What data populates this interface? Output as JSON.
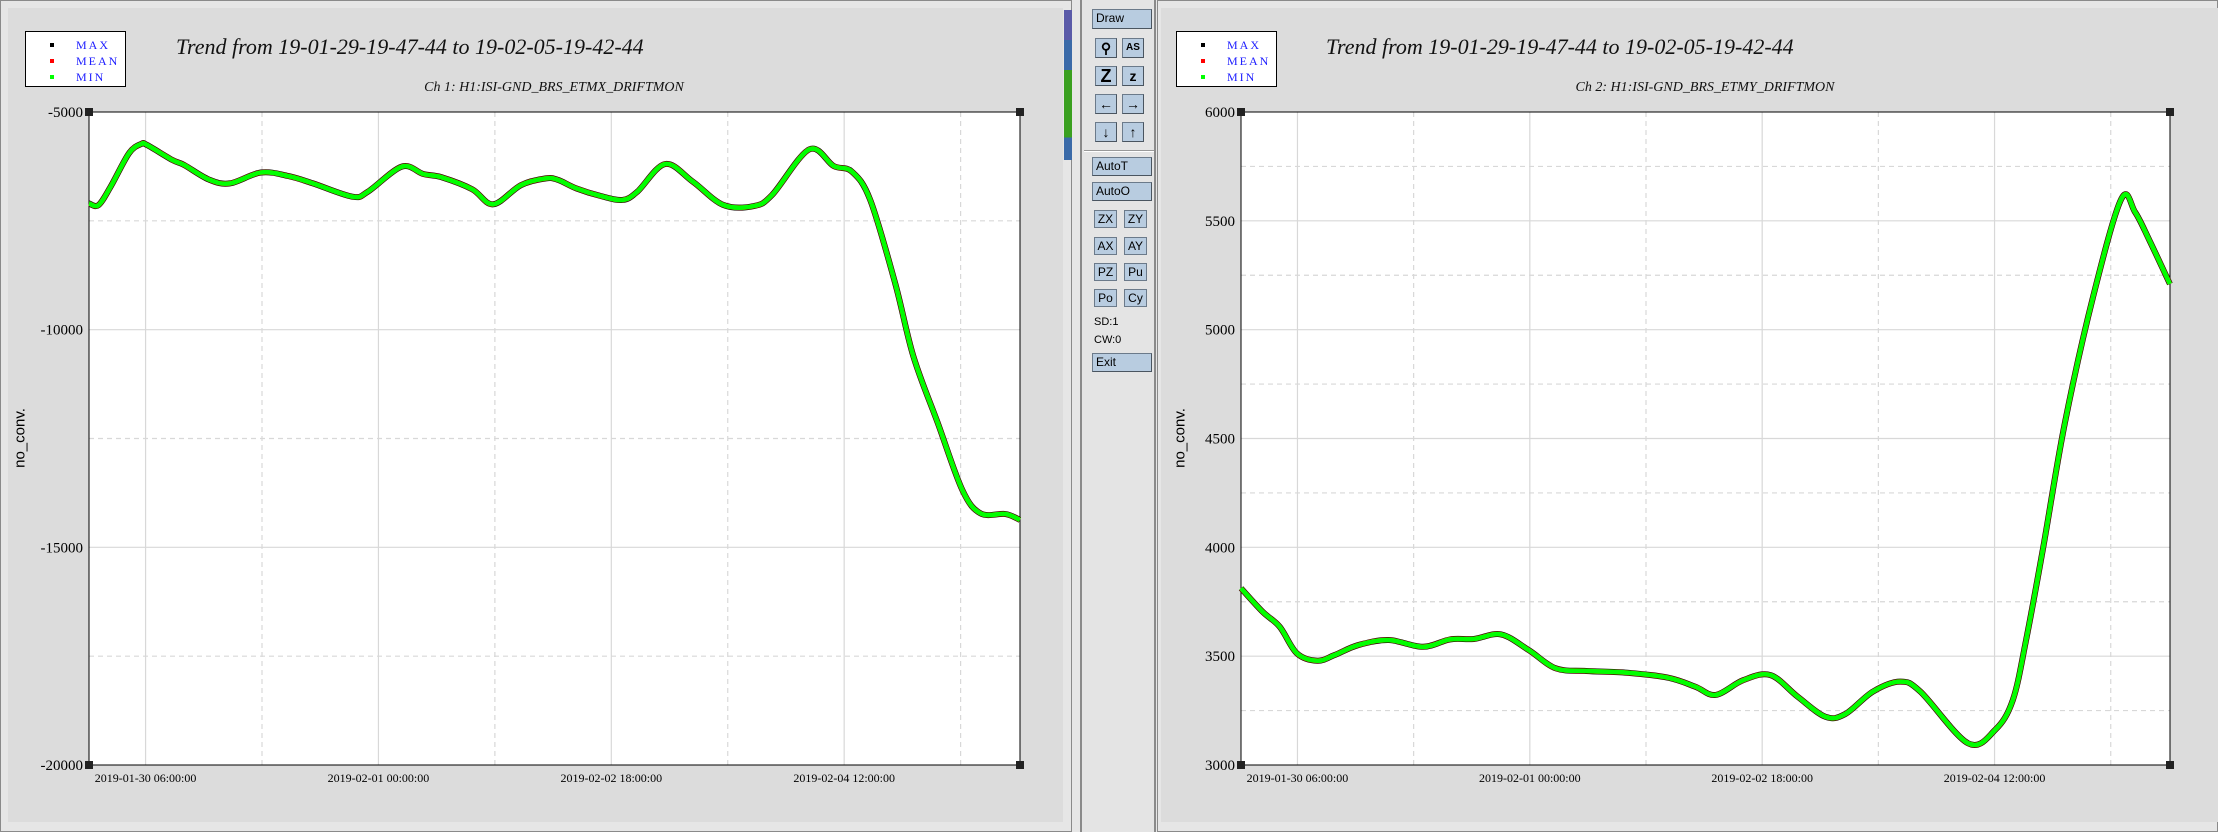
{
  "legend": {
    "items": [
      {
        "label": "MAX",
        "color": "#000000"
      },
      {
        "label": "MEAN",
        "color": "#ff0000"
      },
      {
        "label": "MIN",
        "color": "#00ff00"
      }
    ]
  },
  "controls": {
    "draw": "Draw",
    "autot": "AutoT",
    "autoo": "AutoO",
    "exit": "Exit",
    "icons": [
      {
        "name": "zoom-magnifier-icon",
        "glyph": "⚲"
      },
      {
        "name": "autoscale-icon",
        "glyph": "AS"
      },
      {
        "name": "zoom-out-icon",
        "glyph": "Z"
      },
      {
        "name": "zoom-in-icon",
        "glyph": "z"
      },
      {
        "name": "arrow-left-icon",
        "glyph": "←"
      },
      {
        "name": "arrow-right-icon",
        "glyph": "→"
      },
      {
        "name": "arrow-down-icon",
        "glyph": "↓"
      },
      {
        "name": "arrow-up-icon",
        "glyph": "↑"
      }
    ],
    "small": [
      "ZX",
      "ZY",
      "AX",
      "AY",
      "PZ",
      "Pu",
      "Po",
      "Cy"
    ],
    "sd": "SD:1",
    "cw": "CW:0"
  },
  "chart_data": [
    {
      "type": "line",
      "title": "Trend from 19-01-29-19-47-44 to 19-02-05-19-42-44",
      "subtitle": "Ch 1: H1:ISI-GND_BRS_ETMX_DRIFTMON",
      "ylabel": "no_conv.",
      "xlim": [
        "2019-01-29 19:47:44",
        "2019-02-05 19:42:44"
      ],
      "ylim": [
        -20000,
        -5000
      ],
      "yticks": [
        -5000,
        -10000,
        -15000,
        -20000
      ],
      "ytick_labels": [
        "-5000",
        "-10000",
        "-15000",
        "-20000"
      ],
      "xticks": [
        "2019-01-30 06:00:00",
        "2019-02-01 00:00:00",
        "2019-02-02 18:00:00",
        "2019-02-04 12:00:00"
      ],
      "grid": true,
      "line_color": "#00ff00",
      "x": [
        "2019-01-29 19:48",
        "2019-01-29 21:30",
        "2019-01-29 23:42",
        "2019-01-30 03:00",
        "2019-01-30 05:12",
        "2019-01-30 06:18",
        "2019-01-30 10:48",
        "2019-01-30 13:00",
        "2019-01-30 17:24",
        "2019-01-30 21:12",
        "2019-01-31 02:48",
        "2019-01-31 07:42",
        "2019-01-31 12:12",
        "2019-01-31 19:18",
        "2019-01-31 22:06",
        "2019-02-01 04:12",
        "2019-02-01 08:06",
        "2019-02-01 11:24",
        "2019-02-01 16:54",
        "2019-02-01 20:42",
        "2019-02-02 01:42",
        "2019-02-02 06:12",
        "2019-02-02 08:24",
        "2019-02-02 11:42",
        "2019-02-02 16:06",
        "2019-02-02 20:00",
        "2019-02-02 22:42",
        "2019-02-03 03:42",
        "2019-02-03 08:42",
        "2019-02-03 14:12",
        "2019-02-03 19:42",
        "2019-02-03 23:00",
        "2019-02-04 05:42",
        "2019-02-04 10:06",
        "2019-02-04 13:24",
        "2019-02-04 16:42",
        "2019-02-04 21:12",
        "2019-02-05 00:30",
        "2019-02-05 04:54",
        "2019-02-05 09:18",
        "2019-02-05 12:36",
        "2019-02-05 17:06",
        "2019-02-05 19:42"
      ],
      "y": [
        -7100,
        -7140,
        -6715,
        -5950,
        -5735,
        -5760,
        -6100,
        -6220,
        -6550,
        -6640,
        -6390,
        -6470,
        -6640,
        -6945,
        -6830,
        -6255,
        -6425,
        -6500,
        -6775,
        -7120,
        -6680,
        -6525,
        -6560,
        -6755,
        -6930,
        -7020,
        -6830,
        -6195,
        -6600,
        -7135,
        -7160,
        -6905,
        -5860,
        -6240,
        -6370,
        -7020,
        -8935,
        -10620,
        -12150,
        -13680,
        -14220,
        -14235,
        -14370
      ]
    },
    {
      "type": "line",
      "title": "Trend from 19-01-29-19-47-44 to 19-02-05-19-42-44",
      "subtitle": "Ch 2: H1:ISI-GND_BRS_ETMY_DRIFTMON",
      "ylabel": "no_conv.",
      "xlim": [
        "2019-01-29 19:47:44",
        "2019-02-05 19:42:44"
      ],
      "ylim": [
        3000,
        6000
      ],
      "yticks": [
        6000,
        5500,
        5000,
        4500,
        4000,
        3500,
        3000
      ],
      "ytick_labels": [
        "6000",
        "5500",
        "5000",
        "4500",
        "4000",
        "3500",
        "3000"
      ],
      "xticks": [
        "2019-01-30 06:00:00",
        "2019-02-01 00:00:00",
        "2019-02-02 18:00:00",
        "2019-02-04 12:00:00"
      ],
      "grid": true,
      "line_color": "#00ff00",
      "x": [
        "2019-01-29 19:48",
        "2019-01-29 23:42",
        "2019-01-30 02:48",
        "2019-01-30 05:54",
        "2019-01-30 09:36",
        "2019-01-30 12:42",
        "2019-01-30 17:00",
        "2019-01-30 22:30",
        "2019-01-31 04:42",
        "2019-01-31 09:36",
        "2019-01-31 13:54",
        "2019-01-31 18:48",
        "2019-01-31 23:48",
        "2019-02-01 04:42",
        "2019-02-01 10:12",
        "2019-02-01 17:36",
        "2019-02-02 01:00",
        "2019-02-02 05:54",
        "2019-02-02 09:36",
        "2019-02-02 14:36",
        "2019-02-02 19:30",
        "2019-02-03 00:24",
        "2019-02-03 05:24",
        "2019-02-03 09:00",
        "2019-02-03 14:00",
        "2019-02-03 18:54",
        "2019-02-03 22:36",
        "2019-02-04 07:12",
        "2019-02-04 12:06",
        "2019-02-04 15:18",
        "2019-02-04 17:42",
        "2019-02-04 20:48",
        "2019-02-05 00:42",
        "2019-02-05 05:48",
        "2019-02-05 10:54",
        "2019-02-05 13:24",
        "2019-02-05 16:00",
        "2019-02-05 19:42"
      ],
      "y": [
        3812,
        3704,
        3635,
        3513,
        3479,
        3505,
        3551,
        3574,
        3543,
        3577,
        3579,
        3600,
        3528,
        3444,
        3432,
        3424,
        3401,
        3360,
        3322,
        3390,
        3413,
        3314,
        3222,
        3234,
        3337,
        3383,
        3337,
        3100,
        3161,
        3298,
        3574,
        4000,
        4570,
        5150,
        5600,
        5540,
        5410,
        5210
      ]
    }
  ]
}
